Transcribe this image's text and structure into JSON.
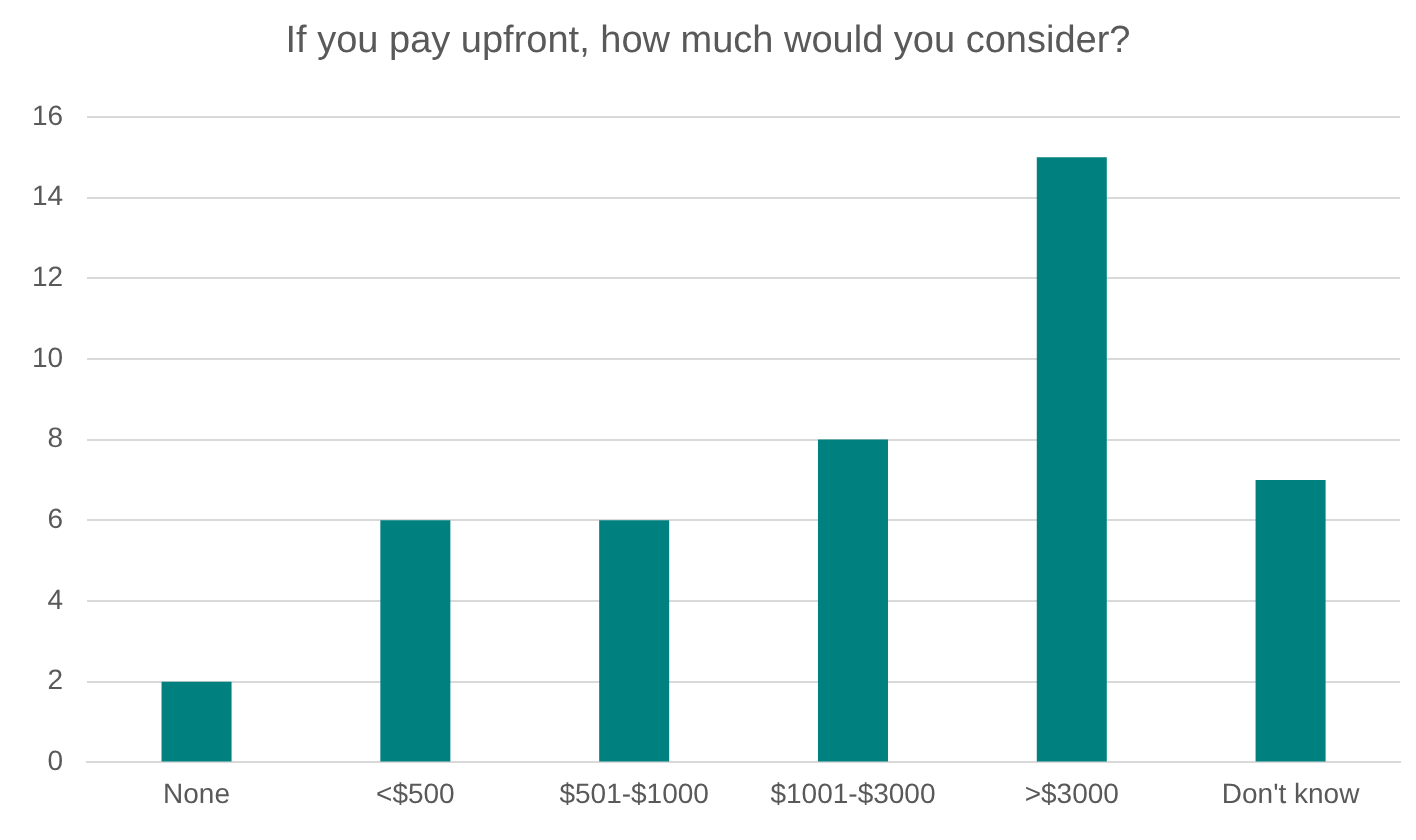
{
  "chart_data": {
    "type": "bar",
    "title": "If you pay upfront, how much would you consider?",
    "categories": [
      "None",
      "<$500",
      "$501-$1000",
      "$1001-$3000",
      ">$3000",
      "Don't know"
    ],
    "values": [
      2,
      6,
      6,
      8,
      15,
      7
    ],
    "color": "#00807f",
    "ylim": [
      0,
      16
    ],
    "yticks": [
      0,
      2,
      4,
      6,
      8,
      10,
      12,
      14,
      16
    ],
    "grid": "y"
  }
}
